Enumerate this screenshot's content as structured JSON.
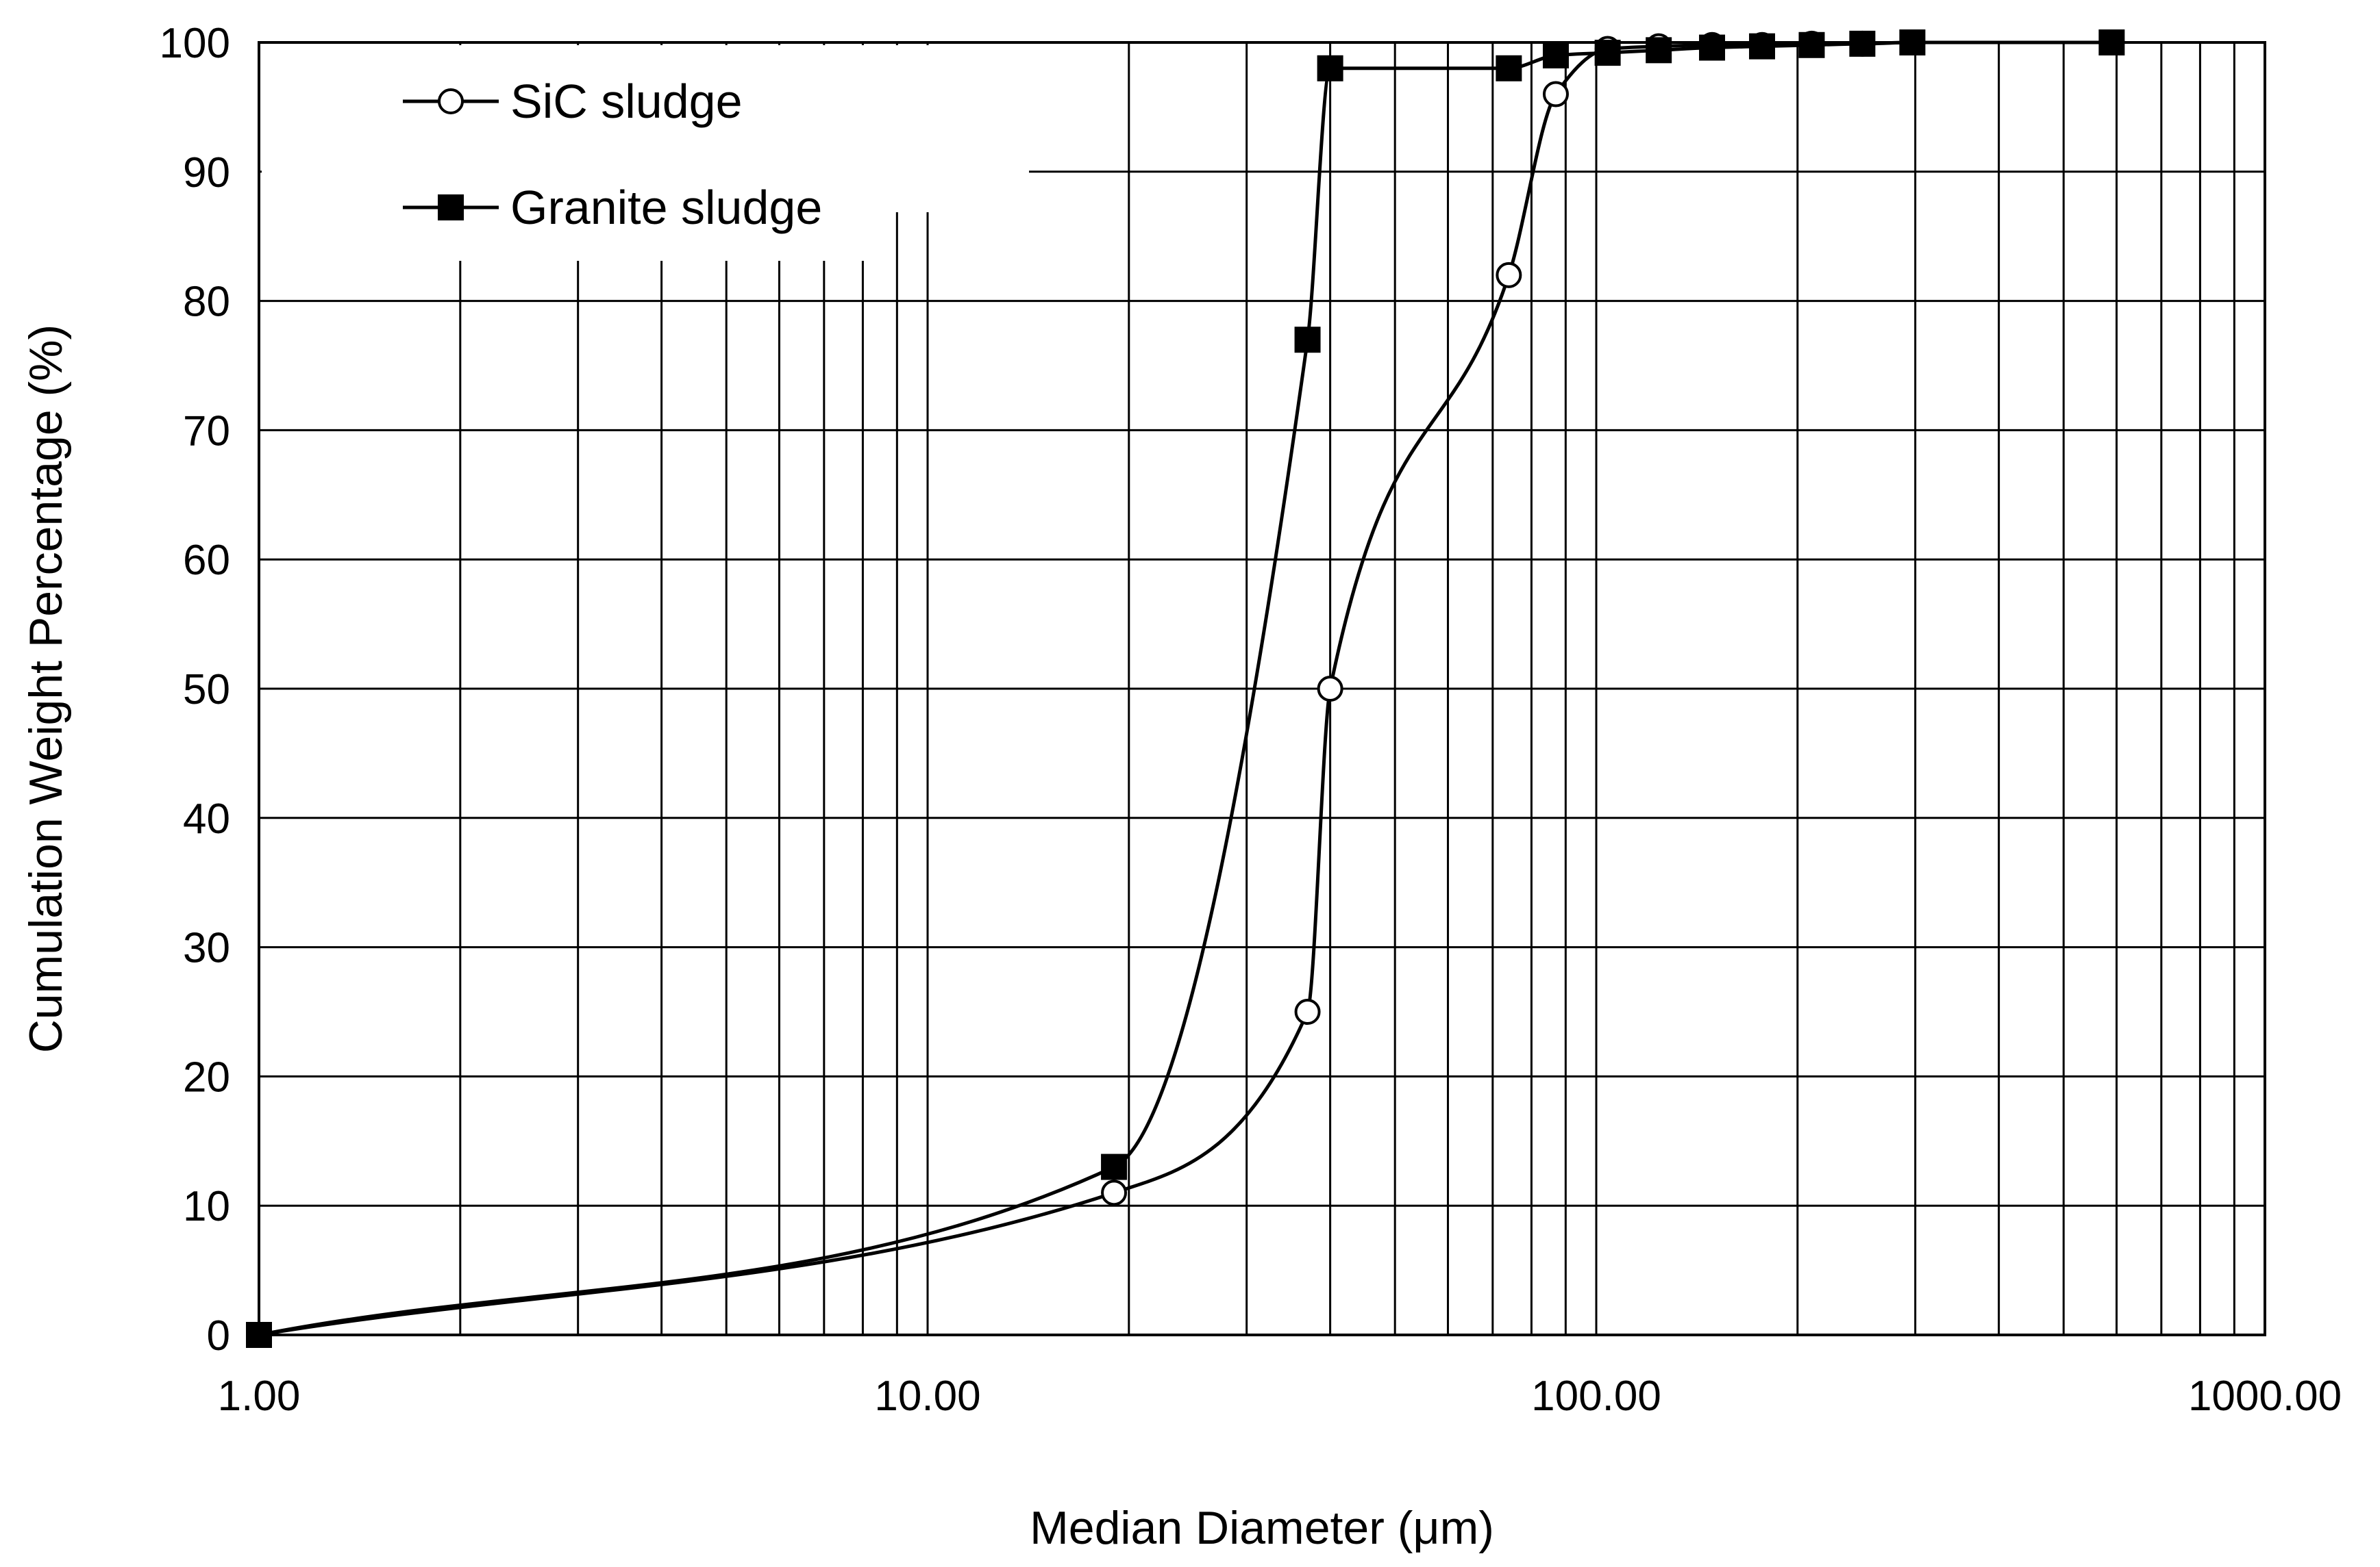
{
  "chart_data": {
    "type": "line",
    "x_scale": "log",
    "xlabel": "Median Diameter (μm)",
    "ylabel": "Cumulation Weight Percentage (%)",
    "xlim": [
      1,
      1000
    ],
    "ylim": [
      0,
      100
    ],
    "x_ticks": [
      "1.00",
      "10.00",
      "100.00",
      "1000.00"
    ],
    "y_ticks": [
      "0",
      "10",
      "20",
      "30",
      "40",
      "50",
      "60",
      "70",
      "80",
      "90",
      "100"
    ],
    "grid": true,
    "legend_position": "top-left",
    "series": [
      {
        "name": "SiC sludge",
        "marker": "open-circle",
        "points": [
          {
            "x": 1.0,
            "y": 0
          },
          {
            "x": 19.0,
            "y": 11
          },
          {
            "x": 37.0,
            "y": 25
          },
          {
            "x": 40.0,
            "y": 50
          },
          {
            "x": 74.0,
            "y": 82
          },
          {
            "x": 87.0,
            "y": 96
          },
          {
            "x": 104.0,
            "y": 99.5
          },
          {
            "x": 124.0,
            "y": 99.7
          },
          {
            "x": 149.0,
            "y": 99.8
          },
          {
            "x": 177.0,
            "y": 99.8
          },
          {
            "x": 210.0,
            "y": 99.9
          },
          {
            "x": 250.0,
            "y": 99.9
          },
          {
            "x": 297.0,
            "y": 100
          },
          {
            "x": 590.0,
            "y": 100
          }
        ]
      },
      {
        "name": "Granite sludge",
        "marker": "filled-square",
        "points": [
          {
            "x": 1.0,
            "y": 0
          },
          {
            "x": 19.0,
            "y": 13
          },
          {
            "x": 37.0,
            "y": 77
          },
          {
            "x": 40.0,
            "y": 98
          },
          {
            "x": 74.0,
            "y": 98
          },
          {
            "x": 87.0,
            "y": 99
          },
          {
            "x": 104.0,
            "y": 99.2
          },
          {
            "x": 124.0,
            "y": 99.4
          },
          {
            "x": 149.0,
            "y": 99.6
          },
          {
            "x": 177.0,
            "y": 99.7
          },
          {
            "x": 210.0,
            "y": 99.8
          },
          {
            "x": 250.0,
            "y": 99.9
          },
          {
            "x": 297.0,
            "y": 100
          },
          {
            "x": 590.0,
            "y": 100
          }
        ]
      }
    ]
  }
}
